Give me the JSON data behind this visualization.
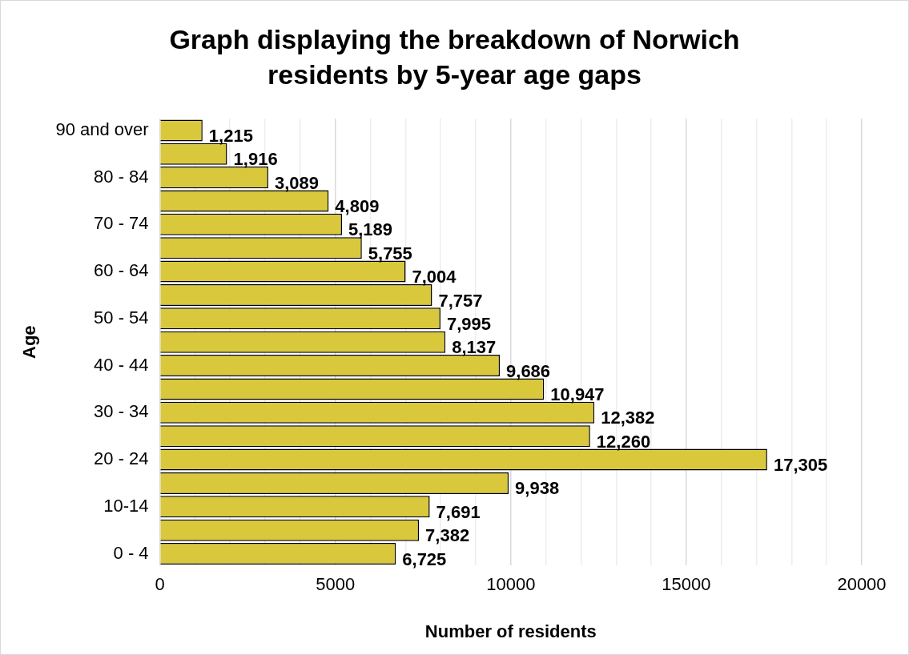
{
  "chart_data": {
    "type": "bar",
    "orientation": "horizontal",
    "title": "Graph displaying the breakdown of Norwich residents by 5-year age gaps",
    "xlabel": "Number of residents",
    "ylabel": "Age",
    "categories": [
      "90 and over",
      null,
      "80 - 84",
      null,
      "70 - 74",
      null,
      "60 - 64",
      null,
      "50 - 54",
      null,
      "40 - 44",
      null,
      "30 - 34",
      null,
      "20 - 24",
      null,
      "10-14",
      null,
      "0 - 4"
    ],
    "values": [
      1215,
      1916,
      3089,
      4809,
      5189,
      5755,
      7004,
      7757,
      7995,
      8137,
      9686,
      10947,
      12382,
      12260,
      17305,
      9938,
      7691,
      7382,
      6725
    ],
    "value_labels": [
      "1,215",
      "1,916",
      "3,089",
      "4,809",
      "5,189",
      "5,755",
      "7,004",
      "7,757",
      "7,995",
      "8,137",
      "9,686",
      "10,947",
      "12,382",
      "12,260",
      "17,305",
      "9,938",
      "7,691",
      "7,382",
      "6,725"
    ],
    "color": "#d9c83c",
    "xlim": [
      0,
      20000
    ],
    "xticks": [
      0,
      {
        "value": 1000,
        "label": null
      },
      {
        "value": 2000,
        "label": null
      },
      {
        "value": 3000,
        "label": null
      },
      {
        "value": 4000,
        "label": null
      },
      5000,
      {
        "value": 6000,
        "label": null
      },
      {
        "value": 7000,
        "label": null
      },
      {
        "value": 8000,
        "label": null
      },
      {
        "value": 9000,
        "label": null
      },
      10000,
      {
        "value": 11000,
        "label": null
      },
      {
        "value": 12000,
        "label": null
      },
      {
        "value": 13000,
        "label": null
      },
      {
        "value": 14000,
        "label": null
      },
      15000,
      {
        "value": 16000,
        "label": null
      },
      {
        "value": 17000,
        "label": null
      },
      {
        "value": 18000,
        "label": null
      },
      {
        "value": 19000,
        "label": null
      },
      20000
    ],
    "grid": "x",
    "legend": false
  }
}
